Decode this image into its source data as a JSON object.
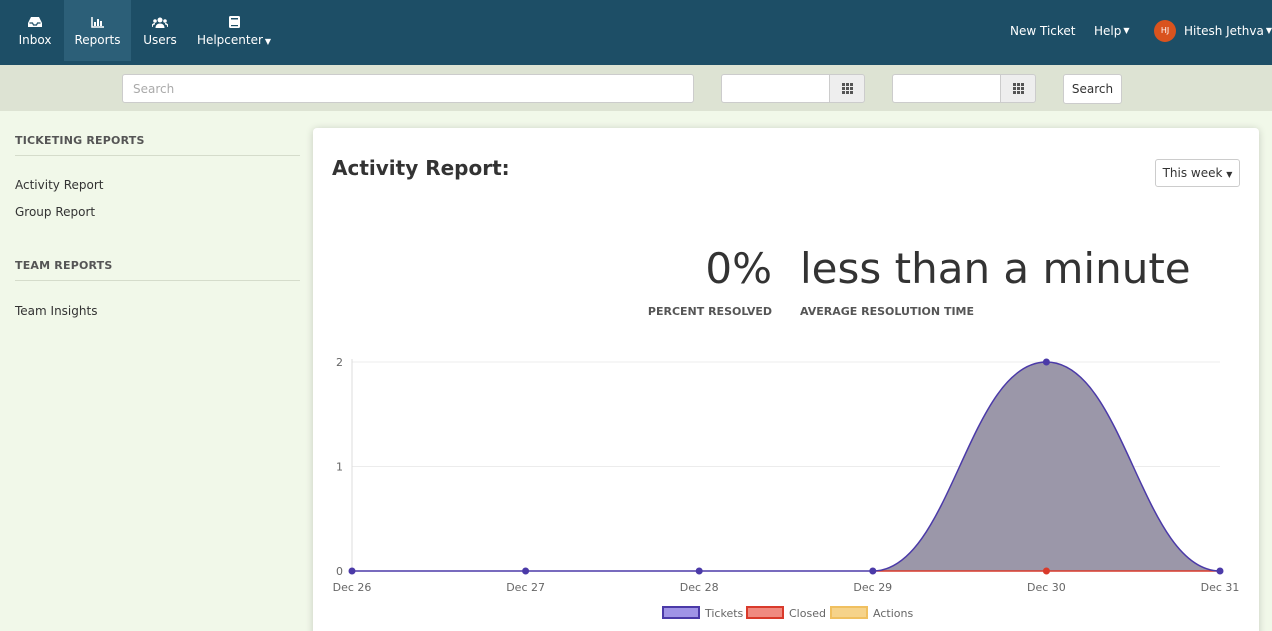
{
  "nav": {
    "items": [
      {
        "label": "Inbox",
        "icon": "inbox-icon"
      },
      {
        "label": "Reports",
        "icon": "bar-chart-icon"
      },
      {
        "label": "Users",
        "icon": "users-icon"
      },
      {
        "label": "Helpcenter",
        "icon": "book-icon"
      }
    ],
    "new_ticket": "New Ticket",
    "help": "Help",
    "user_initials": "HJ",
    "user_name": "Hitesh Jethva"
  },
  "search": {
    "placeholder": "Search",
    "button": "Search"
  },
  "sidebar": {
    "ticketing_heading": "TICKETING REPORTS",
    "ticketing_links": [
      "Activity Report",
      "Group Report"
    ],
    "team_heading": "TEAM REPORTS",
    "team_links": [
      "Team Insights"
    ]
  },
  "report": {
    "title": "Activity Report:",
    "period": "This week",
    "percent_resolved": "0%",
    "percent_resolved_label": "PERCENT RESOLVED",
    "avg_resolution": "less than a minute",
    "avg_resolution_label": "AVERAGE RESOLUTION TIME"
  },
  "colors": {
    "nav_bg": "#1d4e66",
    "tickets_fill": "#9b97a9",
    "tickets_line": "#4b3aa8",
    "closed": "#d93a2b",
    "actions": "#f0c060"
  },
  "chart_data": {
    "type": "area",
    "x": [
      "Dec 26",
      "Dec 27",
      "Dec 28",
      "Dec 29",
      "Dec 30",
      "Dec 31"
    ],
    "yticks": [
      "0",
      "1",
      "2"
    ],
    "ylim": [
      0,
      2
    ],
    "grid": true,
    "legend": "bottom",
    "series": [
      {
        "name": "Tickets",
        "values": [
          0,
          0,
          0,
          0,
          2,
          0
        ]
      },
      {
        "name": "Closed",
        "values": [
          0,
          0,
          0,
          0,
          0,
          0
        ]
      },
      {
        "name": "Actions",
        "values": [
          0,
          0,
          0,
          0,
          0,
          0
        ]
      }
    ]
  }
}
